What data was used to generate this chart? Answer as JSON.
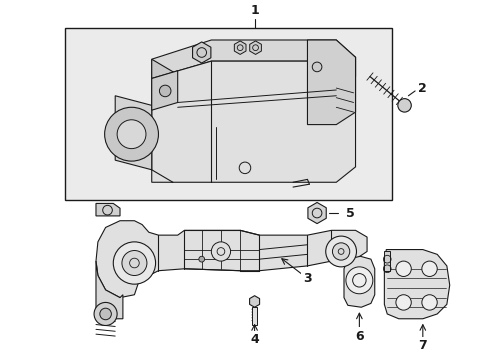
{
  "background_color": "#ffffff",
  "line_color": "#1a1a1a",
  "fill_box": "#ebebeb",
  "fill_body": "#e2e2e2",
  "fill_dark": "#c8c8c8",
  "figsize": [
    4.89,
    3.6
  ],
  "dpi": 100
}
